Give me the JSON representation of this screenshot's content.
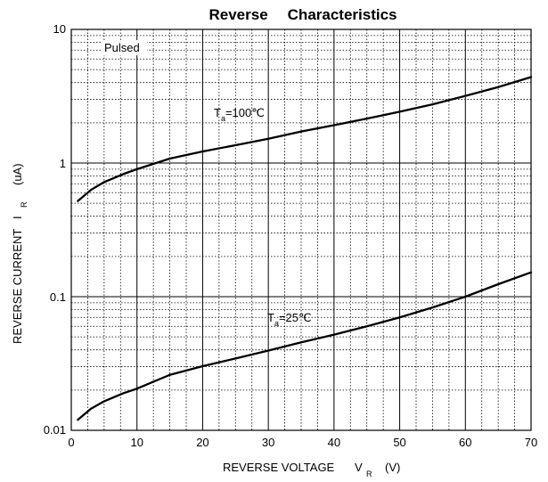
{
  "chart_data": {
    "type": "line",
    "title_words": [
      "Reverse",
      "Characteristics"
    ],
    "xlabel": {
      "text": "REVERSE VOLTAGE",
      "symbol": "V",
      "subscript": "R",
      "unit": "(V)"
    },
    "ylabel": {
      "text": "REVERSE CURRENT",
      "symbol": "I",
      "subscript": "R",
      "unit": "(uA)"
    },
    "xlim": [
      0,
      70
    ],
    "ylim": [
      0.01,
      10
    ],
    "yscale": "log",
    "grid": true,
    "x_ticks": [
      "0",
      "10",
      "20",
      "30",
      "40",
      "50",
      "60",
      "70"
    ],
    "y_ticks": [
      "0.01",
      "0.1",
      "1",
      "10"
    ],
    "annotations": [
      {
        "id": "pulsed",
        "text": "Pulsed"
      },
      {
        "id": "t100",
        "symbol": "T",
        "subscript": "a",
        "text": "=100℃"
      },
      {
        "id": "t25",
        "symbol": "T",
        "subscript": "a",
        "text": "=25℃"
      }
    ],
    "series": [
      {
        "x": [
          1,
          3,
          5,
          8,
          10,
          15,
          20,
          25,
          30,
          35,
          40,
          45,
          50,
          55,
          60,
          65,
          70
        ],
        "y": [
          0.52,
          0.63,
          0.72,
          0.83,
          0.9,
          1.08,
          1.22,
          1.36,
          1.52,
          1.72,
          1.92,
          2.15,
          2.42,
          2.75,
          3.18,
          3.7,
          4.4
        ]
      },
      {
        "x": [
          1,
          3,
          5,
          8,
          10,
          15,
          20,
          25,
          30,
          35,
          40,
          45,
          50,
          55,
          60,
          65,
          70
        ],
        "y": [
          0.012,
          0.0145,
          0.0165,
          0.019,
          0.0205,
          0.026,
          0.0302,
          0.0345,
          0.0395,
          0.0455,
          0.052,
          0.06,
          0.07,
          0.083,
          0.1,
          0.124,
          0.152
        ]
      }
    ]
  }
}
